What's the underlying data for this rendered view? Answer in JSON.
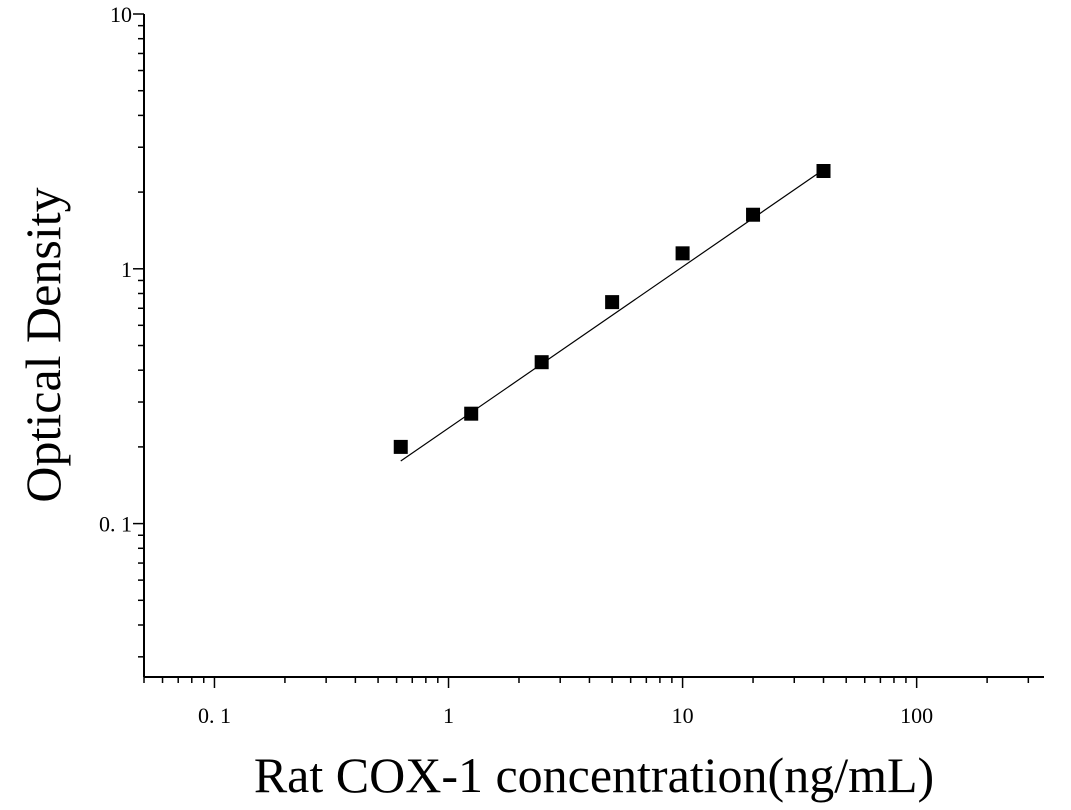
{
  "chart_data": {
    "type": "scatter",
    "title": "",
    "xlabel": "Rat COX-1 concentration(ng/mL)",
    "ylabel": "Optical Density",
    "xscale": "log",
    "yscale": "log",
    "xlim": [
      0.05,
      350
    ],
    "ylim": [
      0.025,
      10
    ],
    "xticks": [
      {
        "value": 0.1,
        "label": "0. 1"
      },
      {
        "value": 1,
        "label": "1"
      },
      {
        "value": 10,
        "label": "10"
      },
      {
        "value": 100,
        "label": "100"
      }
    ],
    "yticks": [
      {
        "value": 0.1,
        "label": "0. 1"
      },
      {
        "value": 1,
        "label": "1"
      },
      {
        "value": 10,
        "label": "10"
      }
    ],
    "grid": false,
    "legend": "none",
    "series": [
      {
        "marker": "square",
        "color": "#000000",
        "points": [
          {
            "x": 0.625,
            "y": 0.2
          },
          {
            "x": 1.25,
            "y": 0.27
          },
          {
            "x": 2.5,
            "y": 0.43
          },
          {
            "x": 5,
            "y": 0.74
          },
          {
            "x": 10,
            "y": 1.15
          },
          {
            "x": 20,
            "y": 1.63
          },
          {
            "x": 40,
            "y": 2.42
          }
        ]
      }
    ],
    "fit_line": {
      "type": "power",
      "color": "#000000",
      "points": [
        {
          "x": 0.625,
          "y": 0.176
        },
        {
          "x": 40,
          "y": 2.45
        }
      ]
    }
  }
}
